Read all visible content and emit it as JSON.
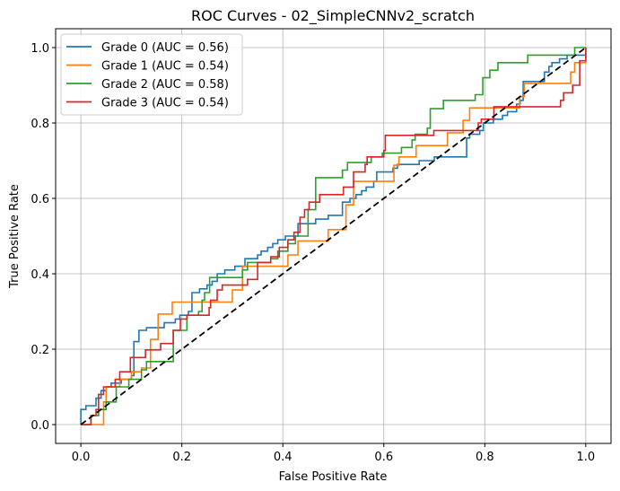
{
  "chart_data": {
    "type": "line",
    "title": "ROC Curves - 02_SimpleCNNv2_scratch",
    "xlabel": "False Positive Rate",
    "ylabel": "True Positive Rate",
    "xlim": [
      -0.05,
      1.05
    ],
    "ylim": [
      -0.05,
      1.05
    ],
    "xticks": [
      "0.0",
      "0.2",
      "0.4",
      "0.6",
      "0.8",
      "1.0"
    ],
    "yticks": [
      "0.0",
      "0.2",
      "0.4",
      "0.6",
      "0.8",
      "1.0"
    ],
    "grid": true,
    "legend_position": "top-left",
    "drawstyle": "steps-pre",
    "series": [
      {
        "name": "Grade 0 (AUC = 0.56)",
        "color": "#1f77b4",
        "auc": 0.56,
        "points": [
          [
            0,
            0
          ],
          [
            0,
            0.04
          ],
          [
            0.01,
            0.05
          ],
          [
            0.03,
            0.07
          ],
          [
            0.04,
            0.09
          ],
          [
            0.05,
            0.1
          ],
          [
            0.06,
            0.11
          ],
          [
            0.08,
            0.12
          ],
          [
            0.1,
            0.13
          ],
          [
            0.105,
            0.16
          ],
          [
            0.105,
            0.22
          ],
          [
            0.115,
            0.25
          ],
          [
            0.13,
            0.257
          ],
          [
            0.165,
            0.27
          ],
          [
            0.187,
            0.28
          ],
          [
            0.196,
            0.29
          ],
          [
            0.213,
            0.3
          ],
          [
            0.22,
            0.35
          ],
          [
            0.235,
            0.36
          ],
          [
            0.25,
            0.37
          ],
          [
            0.26,
            0.38
          ],
          [
            0.27,
            0.4
          ],
          [
            0.285,
            0.41
          ],
          [
            0.305,
            0.42
          ],
          [
            0.325,
            0.44
          ],
          [
            0.35,
            0.45
          ],
          [
            0.357,
            0.46
          ],
          [
            0.37,
            0.47
          ],
          [
            0.38,
            0.48
          ],
          [
            0.39,
            0.49
          ],
          [
            0.405,
            0.5
          ],
          [
            0.43,
            0.514
          ],
          [
            0.43,
            0.533
          ],
          [
            0.465,
            0.545
          ],
          [
            0.49,
            0.555
          ],
          [
            0.518,
            0.567
          ],
          [
            0.518,
            0.59
          ],
          [
            0.533,
            0.6
          ],
          [
            0.545,
            0.61
          ],
          [
            0.556,
            0.62
          ],
          [
            0.565,
            0.63
          ],
          [
            0.58,
            0.645
          ],
          [
            0.586,
            0.67
          ],
          [
            0.618,
            0.68
          ],
          [
            0.627,
            0.69
          ],
          [
            0.67,
            0.7
          ],
          [
            0.7,
            0.71
          ],
          [
            0.764,
            0.76
          ],
          [
            0.77,
            0.77
          ],
          [
            0.79,
            0.78
          ],
          [
            0.797,
            0.8
          ],
          [
            0.817,
            0.81
          ],
          [
            0.835,
            0.82
          ],
          [
            0.845,
            0.83
          ],
          [
            0.863,
            0.85
          ],
          [
            0.87,
            0.86
          ],
          [
            0.876,
            0.91
          ],
          [
            0.918,
            0.935
          ],
          [
            0.927,
            0.95
          ],
          [
            0.933,
            0.96
          ],
          [
            0.948,
            0.97
          ],
          [
            0.963,
            0.98
          ],
          [
            1.0,
            1.0
          ]
        ]
      },
      {
        "name": "Grade 1 (AUC = 0.54)",
        "color": "#ff7f0e",
        "auc": 0.54,
        "points": [
          [
            0,
            0
          ],
          [
            0.045,
            0.06
          ],
          [
            0.05,
            0.1
          ],
          [
            0.077,
            0.12
          ],
          [
            0.1,
            0.14
          ],
          [
            0.12,
            0.15
          ],
          [
            0.138,
            0.226
          ],
          [
            0.153,
            0.293
          ],
          [
            0.181,
            0.325
          ],
          [
            0.3,
            0.357
          ],
          [
            0.32,
            0.42
          ],
          [
            0.41,
            0.45
          ],
          [
            0.43,
            0.487
          ],
          [
            0.49,
            0.517
          ],
          [
            0.525,
            0.583
          ],
          [
            0.54,
            0.645
          ],
          [
            0.62,
            0.688
          ],
          [
            0.63,
            0.71
          ],
          [
            0.664,
            0.74
          ],
          [
            0.726,
            0.774
          ],
          [
            0.757,
            0.807
          ],
          [
            0.77,
            0.84
          ],
          [
            0.869,
            0.87
          ],
          [
            0.878,
            0.905
          ],
          [
            0.97,
            0.935
          ],
          [
            0.978,
            0.96
          ],
          [
            1.0,
            1.0
          ]
        ]
      },
      {
        "name": "Grade 2 (AUC = 0.58)",
        "color": "#2ca02c",
        "auc": 0.58,
        "points": [
          [
            0,
            0
          ],
          [
            0.02,
            0.024
          ],
          [
            0.035,
            0.04
          ],
          [
            0.05,
            0.06
          ],
          [
            0.07,
            0.1
          ],
          [
            0.095,
            0.12
          ],
          [
            0.12,
            0.145
          ],
          [
            0.13,
            0.167
          ],
          [
            0.183,
            0.228
          ],
          [
            0.183,
            0.25
          ],
          [
            0.21,
            0.29
          ],
          [
            0.233,
            0.3
          ],
          [
            0.24,
            0.33
          ],
          [
            0.245,
            0.35
          ],
          [
            0.255,
            0.39
          ],
          [
            0.32,
            0.41
          ],
          [
            0.33,
            0.43
          ],
          [
            0.376,
            0.44
          ],
          [
            0.39,
            0.46
          ],
          [
            0.41,
            0.48
          ],
          [
            0.425,
            0.5
          ],
          [
            0.45,
            0.57
          ],
          [
            0.465,
            0.655
          ],
          [
            0.518,
            0.675
          ],
          [
            0.528,
            0.695
          ],
          [
            0.575,
            0.71
          ],
          [
            0.597,
            0.72
          ],
          [
            0.635,
            0.735
          ],
          [
            0.656,
            0.755
          ],
          [
            0.662,
            0.77
          ],
          [
            0.686,
            0.786
          ],
          [
            0.692,
            0.838
          ],
          [
            0.718,
            0.86
          ],
          [
            0.781,
            0.875
          ],
          [
            0.796,
            0.92
          ],
          [
            0.81,
            0.94
          ],
          [
            0.826,
            0.96
          ],
          [
            0.885,
            0.98
          ],
          [
            0.978,
            1.0
          ],
          [
            1.0,
            1.0
          ]
        ]
      },
      {
        "name": "Grade 3 (AUC = 0.54)",
        "color": "#d62728",
        "auc": 0.54,
        "points": [
          [
            0,
            0
          ],
          [
            0.02,
            0.024
          ],
          [
            0.03,
            0.04
          ],
          [
            0.035,
            0.08
          ],
          [
            0.045,
            0.1
          ],
          [
            0.068,
            0.12
          ],
          [
            0.077,
            0.14
          ],
          [
            0.098,
            0.178
          ],
          [
            0.128,
            0.198
          ],
          [
            0.158,
            0.215
          ],
          [
            0.183,
            0.25
          ],
          [
            0.197,
            0.28
          ],
          [
            0.21,
            0.29
          ],
          [
            0.254,
            0.31
          ],
          [
            0.257,
            0.33
          ],
          [
            0.27,
            0.357
          ],
          [
            0.28,
            0.37
          ],
          [
            0.33,
            0.385
          ],
          [
            0.35,
            0.43
          ],
          [
            0.376,
            0.445
          ],
          [
            0.393,
            0.47
          ],
          [
            0.41,
            0.49
          ],
          [
            0.422,
            0.51
          ],
          [
            0.434,
            0.55
          ],
          [
            0.443,
            0.57
          ],
          [
            0.452,
            0.59
          ],
          [
            0.473,
            0.61
          ],
          [
            0.52,
            0.63
          ],
          [
            0.54,
            0.67
          ],
          [
            0.563,
            0.69
          ],
          [
            0.567,
            0.71
          ],
          [
            0.6,
            0.727
          ],
          [
            0.603,
            0.767
          ],
          [
            0.699,
            0.78
          ],
          [
            0.787,
            0.8
          ],
          [
            0.793,
            0.81
          ],
          [
            0.818,
            0.843
          ],
          [
            0.95,
            0.86
          ],
          [
            0.956,
            0.88
          ],
          [
            0.974,
            0.9
          ],
          [
            0.988,
            0.93
          ],
          [
            0.988,
            0.965
          ],
          [
            1.0,
            1.0
          ]
        ]
      }
    ],
    "reference_line": {
      "style": "dashed",
      "color": "#000000",
      "points": [
        [
          0,
          0
        ],
        [
          1,
          1
        ]
      ]
    }
  }
}
